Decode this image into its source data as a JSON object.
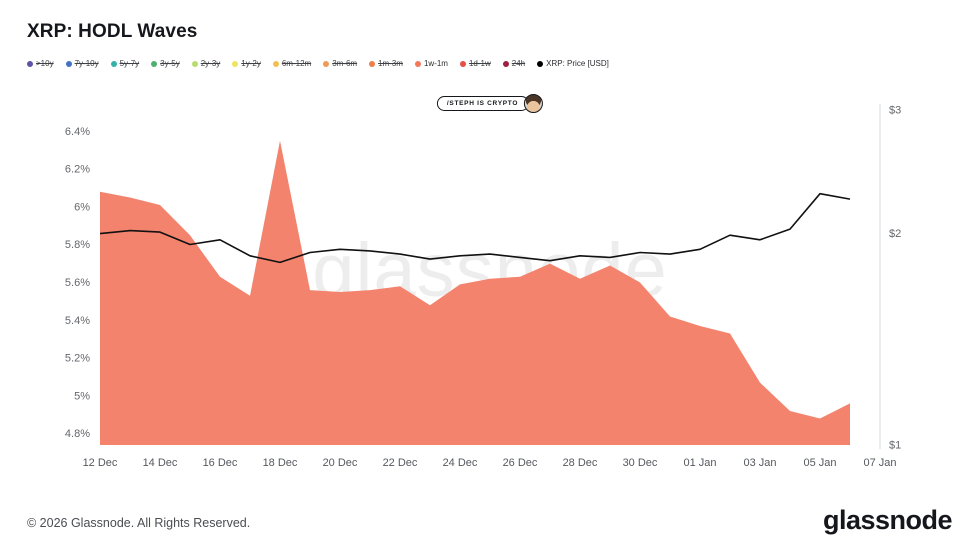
{
  "header": {
    "title": "XRP: HODL Waves"
  },
  "legend": {
    "items": [
      {
        "label": ">10y",
        "color": "#5c54a4",
        "active": false
      },
      {
        "label": "7y-10y",
        "color": "#4272c6",
        "active": false
      },
      {
        "label": "5y-7y",
        "color": "#35b0ab",
        "active": false
      },
      {
        "label": "3y-5y",
        "color": "#4db06e",
        "active": false
      },
      {
        "label": "2y-3y",
        "color": "#b8dc6f",
        "active": false
      },
      {
        "label": "1y-2y",
        "color": "#f0e35f",
        "active": false
      },
      {
        "label": "6m-12m",
        "color": "#f2c04e",
        "active": false
      },
      {
        "label": "3m-6m",
        "color": "#f09a57",
        "active": false
      },
      {
        "label": "1m-3m",
        "color": "#ee7f4b",
        "active": false
      },
      {
        "label": "1w-1m",
        "color": "#f4775c",
        "active": true
      },
      {
        "label": "1d-1w",
        "color": "#e35045",
        "active": false
      },
      {
        "label": "24h",
        "color": "#9e1f3f",
        "active": false
      },
      {
        "label": "XRP: Price [USD]",
        "color": "#000000",
        "active": true
      }
    ]
  },
  "badge": {
    "text": "/STEPH IS CRYPTO"
  },
  "watermark": "glassnode",
  "chart_data": {
    "type": "area+line",
    "title": "XRP: HODL Waves",
    "x": [
      "12 Dec",
      "13 Dec",
      "14 Dec",
      "15 Dec",
      "16 Dec",
      "17 Dec",
      "18 Dec",
      "19 Dec",
      "20 Dec",
      "21 Dec",
      "22 Dec",
      "23 Dec",
      "24 Dec",
      "25 Dec",
      "26 Dec",
      "27 Dec",
      "28 Dec",
      "29 Dec",
      "30 Dec",
      "31 Dec",
      "01 Jan",
      "02 Jan",
      "03 Jan",
      "04 Jan",
      "05 Jan",
      "06 Jan"
    ],
    "series": [
      {
        "name": "1w-1m",
        "type": "area",
        "axis": "left",
        "unit": "%",
        "color": "#f4836e",
        "values": [
          6.08,
          6.05,
          6.01,
          5.85,
          5.63,
          5.53,
          6.35,
          5.56,
          5.55,
          5.56,
          5.58,
          5.48,
          5.59,
          5.62,
          5.63,
          5.7,
          5.62,
          5.69,
          5.6,
          5.42,
          5.37,
          5.33,
          5.07,
          4.92,
          4.88,
          4.96
        ]
      },
      {
        "name": "XRP: Price [USD]",
        "type": "line",
        "axis": "right",
        "unit": "USD",
        "color": "#111111",
        "values": [
          2.0,
          2.02,
          2.01,
          1.93,
          1.96,
          1.86,
          1.82,
          1.88,
          1.9,
          1.89,
          1.87,
          1.84,
          1.86,
          1.87,
          1.85,
          1.83,
          1.86,
          1.85,
          1.88,
          1.87,
          1.9,
          1.99,
          1.96,
          2.03,
          2.28,
          2.24
        ]
      }
    ],
    "x_ticks": [
      "12 Dec",
      "14 Dec",
      "16 Dec",
      "18 Dec",
      "20 Dec",
      "22 Dec",
      "24 Dec",
      "26 Dec",
      "28 Dec",
      "30 Dec",
      "01 Jan",
      "03 Jan",
      "05 Jan",
      "07 Jan"
    ],
    "x_tick_step_days": 2,
    "left_axis": {
      "min": 4.74,
      "max": 6.513,
      "ticks": [
        {
          "label": "6.4%",
          "value": 6.4
        },
        {
          "label": "6.2%",
          "value": 6.2
        },
        {
          "label": "6%",
          "value": 6.0
        },
        {
          "label": "5.8%",
          "value": 5.8
        },
        {
          "label": "5.6%",
          "value": 5.6
        },
        {
          "label": "5.4%",
          "value": 5.4
        },
        {
          "label": "5.2%",
          "value": 5.2
        },
        {
          "label": "5%",
          "value": 5.0
        },
        {
          "label": "4.8%",
          "value": 4.8
        }
      ]
    },
    "right_axis": {
      "min": 1,
      "max": 3,
      "scale": "log",
      "ticks": [
        {
          "label": "$3",
          "value": 3
        },
        {
          "label": "$2",
          "value": 2
        },
        {
          "label": "$1",
          "value": 1
        }
      ]
    },
    "grid": false,
    "legend_position": "top-left"
  },
  "footer": {
    "copyright": "© 2026 Glassnode. All Rights Reserved.",
    "brand": "glassnode"
  }
}
